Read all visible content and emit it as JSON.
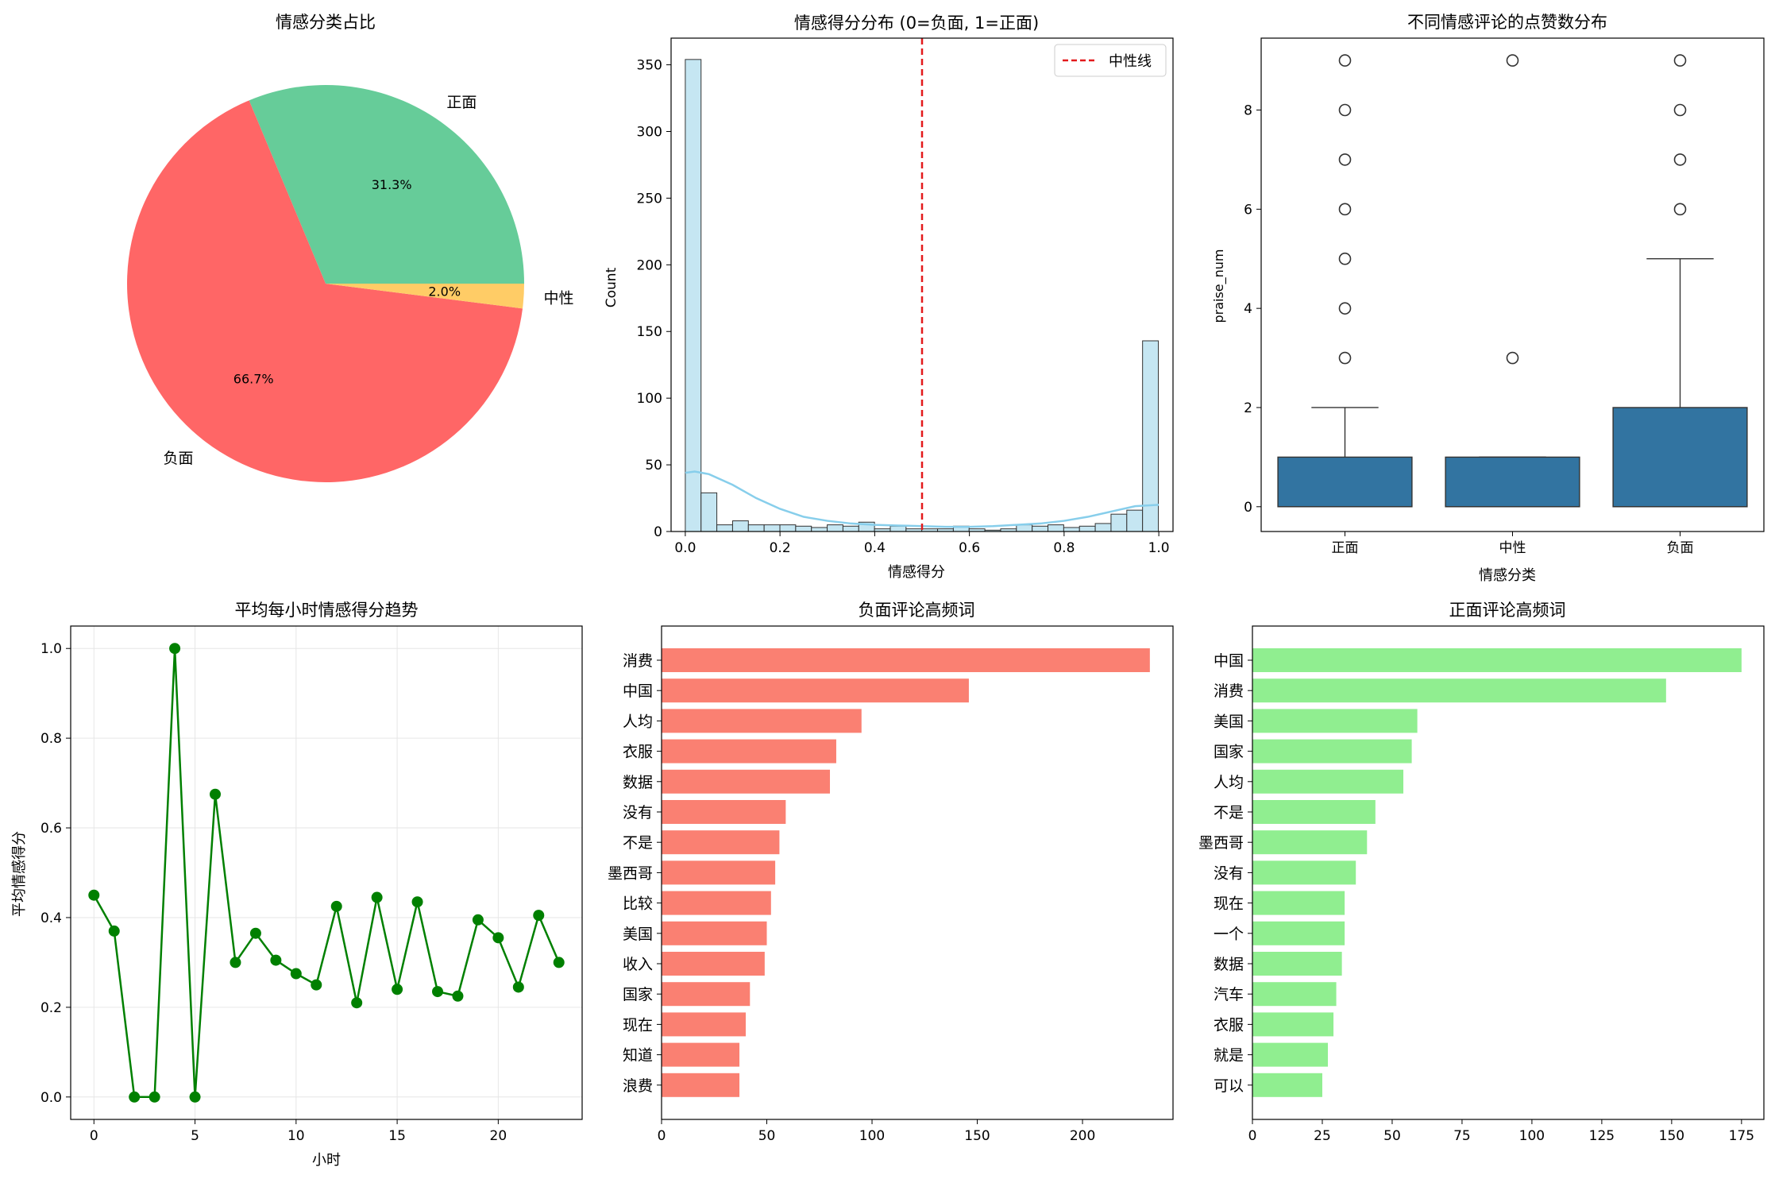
{
  "chart_data": [
    {
      "id": "pie",
      "type": "pie",
      "title": "情感分类占比",
      "slices": [
        {
          "label": "正面",
          "value": 31.3,
          "pct_label": "31.3%",
          "color": "#66cc99"
        },
        {
          "label": "负面",
          "value": 66.7,
          "pct_label": "66.7%",
          "color": "#ff6666"
        },
        {
          "label": "中性",
          "value": 2.0,
          "pct_label": "2.0%",
          "color": "#ffcc66"
        }
      ]
    },
    {
      "id": "hist",
      "type": "bar",
      "title": "情感得分分布 (0=负面, 1=正面)",
      "xlabel": "情感得分",
      "ylabel": "Count",
      "xlim": [
        -0.03,
        1.03
      ],
      "ylim": [
        0,
        370
      ],
      "xticks": [
        0.0,
        0.2,
        0.4,
        0.6,
        0.8,
        1.0
      ],
      "xtick_labels": [
        "0.0",
        "0.2",
        "0.4",
        "0.6",
        "0.8",
        "1.0"
      ],
      "yticks": [
        0,
        50,
        100,
        150,
        200,
        250,
        300,
        350
      ],
      "bin_start": 0.0,
      "bin_width": 0.0333,
      "counts": [
        354,
        29,
        5,
        8,
        5,
        5,
        5,
        4,
        3,
        5,
        4,
        7,
        2,
        4,
        2,
        2,
        2,
        4,
        2,
        1,
        2,
        5,
        4,
        5,
        3,
        4,
        6,
        13,
        16,
        143
      ],
      "bar_color": "#c5e6f2",
      "kde_x": [
        0.0,
        0.02,
        0.05,
        0.1,
        0.15,
        0.2,
        0.25,
        0.3,
        0.35,
        0.4,
        0.45,
        0.5,
        0.55,
        0.6,
        0.65,
        0.7,
        0.75,
        0.8,
        0.85,
        0.9,
        0.95,
        1.0
      ],
      "kde_y": [
        44,
        45,
        43,
        35,
        25,
        17,
        11,
        8,
        6,
        5,
        4.5,
        4,
        3.5,
        3.5,
        4,
        5,
        6,
        8,
        11,
        15,
        19,
        20
      ],
      "kde_color": "#87ceeb",
      "refline": {
        "x": 0.5,
        "label": "中性线",
        "color": "#e31a1c"
      },
      "legend_position": "upper right"
    },
    {
      "id": "box",
      "type": "box",
      "title": "不同情感评论的点赞数分布",
      "xlabel": "情感分类",
      "ylabel": "praise_num",
      "ylim": [
        -0.5,
        9.45
      ],
      "yticks": [
        0,
        2,
        4,
        6,
        8
      ],
      "box_color": "#3274a1",
      "categories": [
        {
          "label": "正面",
          "q1": 0,
          "q3": 1,
          "median": 0,
          "whisker_low": 0,
          "whisker_high": 2,
          "outliers": [
            3,
            4,
            5,
            6,
            7,
            8,
            9
          ]
        },
        {
          "label": "中性",
          "q1": 0,
          "q3": 1,
          "median": 0,
          "whisker_low": 0,
          "whisker_high": 1,
          "outliers": [
            3,
            9
          ]
        },
        {
          "label": "负面",
          "q1": 0,
          "q3": 2,
          "median": 0,
          "whisker_low": 0,
          "whisker_high": 5,
          "outliers": [
            6,
            7,
            8,
            9
          ]
        }
      ]
    },
    {
      "id": "line",
      "type": "line",
      "title": "平均每小时情感得分趋势",
      "xlabel": "小时",
      "ylabel": "平均情感得分",
      "xlim": [
        -1.15,
        24.15
      ],
      "ylim": [
        -0.05,
        1.05
      ],
      "xticks": [
        0,
        5,
        10,
        15,
        20
      ],
      "yticks": [
        0.0,
        0.2,
        0.4,
        0.6,
        0.8,
        1.0
      ],
      "ytick_labels": [
        "0.0",
        "0.2",
        "0.4",
        "0.6",
        "0.8",
        "1.0"
      ],
      "grid": true,
      "color": "#008000",
      "x": [
        0,
        1,
        2,
        3,
        4,
        5,
        6,
        7,
        8,
        9,
        10,
        11,
        12,
        13,
        14,
        15,
        16,
        17,
        18,
        19,
        20,
        21,
        22,
        23
      ],
      "y": [
        0.45,
        0.37,
        0.0,
        0.0,
        1.0,
        0.0,
        0.675,
        0.3,
        0.365,
        0.305,
        0.275,
        0.25,
        0.425,
        0.21,
        0.445,
        0.24,
        0.435,
        0.235,
        0.225,
        0.395,
        0.355,
        0.245,
        0.405,
        0.3
      ]
    },
    {
      "id": "neg_words",
      "type": "bar",
      "orientation": "horizontal",
      "title": "负面评论高频词",
      "xlim": [
        0,
        243
      ],
      "xticks": [
        0,
        50,
        100,
        150,
        200
      ],
      "color": "#fa8072",
      "categories": [
        "消费",
        "中国",
        "人均",
        "衣服",
        "数据",
        "没有",
        "不是",
        "墨西哥",
        "比较",
        "美国",
        "收入",
        "国家",
        "现在",
        "知道",
        "浪费"
      ],
      "values": [
        232,
        146,
        95,
        83,
        80,
        59,
        56,
        54,
        52,
        50,
        49,
        42,
        40,
        37,
        37
      ]
    },
    {
      "id": "pos_words",
      "type": "bar",
      "orientation": "horizontal",
      "title": "正面评论高频词",
      "xlim": [
        0,
        183
      ],
      "xticks": [
        0,
        25,
        50,
        75,
        100,
        125,
        150,
        175
      ],
      "color": "#90ee90",
      "categories": [
        "中国",
        "消费",
        "美国",
        "国家",
        "人均",
        "不是",
        "墨西哥",
        "没有",
        "现在",
        "一个",
        "数据",
        "汽车",
        "衣服",
        "就是",
        "可以"
      ],
      "values": [
        175,
        148,
        59,
        57,
        54,
        44,
        41,
        37,
        33,
        33,
        32,
        30,
        29,
        27,
        25
      ]
    }
  ]
}
